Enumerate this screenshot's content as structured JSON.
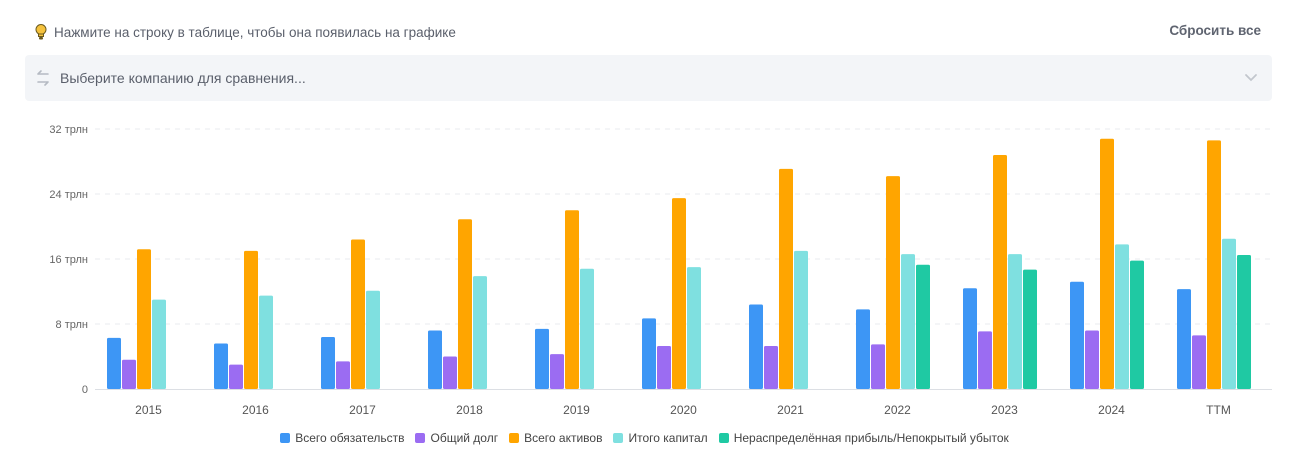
{
  "header": {
    "hint_text": "Нажмите на строку в таблице, чтобы она появилась на графике",
    "reset_label": "Сбросить все"
  },
  "compare": {
    "placeholder": "Выберите компанию для сравнения..."
  },
  "colors": {
    "liabilities": "#3d96f5",
    "debt": "#9b6cf2",
    "assets": "#ffa500",
    "equity": "#7fe0e0",
    "retained": "#1fc9a3",
    "hint_bulb": "#f5c23d"
  },
  "icons": {
    "hint": "lightbulb-icon",
    "compare": "swap-arrows-icon",
    "dropdown": "chevron-down-icon"
  },
  "chart_data": {
    "type": "bar",
    "categories": [
      "2015",
      "2016",
      "2017",
      "2018",
      "2019",
      "2020",
      "2021",
      "2022",
      "2023",
      "2024",
      "TTM"
    ],
    "ylim": [
      0,
      32
    ],
    "y_ticks": [
      0,
      8,
      16,
      24,
      32
    ],
    "y_tick_labels": [
      "0",
      "8 трлн",
      "16 трлн",
      "24 трлн",
      "32 трлн"
    ],
    "grid": true,
    "legend_position": "bottom",
    "series": [
      {
        "name": "Всего обязательств",
        "color": "#3d96f5",
        "values": [
          6.3,
          5.6,
          6.4,
          7.2,
          7.4,
          8.7,
          10.4,
          9.8,
          12.4,
          13.2,
          12.3
        ]
      },
      {
        "name": "Общий долг",
        "color": "#9b6cf2",
        "values": [
          3.6,
          3.0,
          3.4,
          4.0,
          4.3,
          5.3,
          5.3,
          5.5,
          7.1,
          7.2,
          6.6
        ]
      },
      {
        "name": "Всего активов",
        "color": "#ffa500",
        "values": [
          17.2,
          17.0,
          18.4,
          20.9,
          22.0,
          23.5,
          27.1,
          26.2,
          28.8,
          30.8,
          30.6
        ]
      },
      {
        "name": "Итого капитал",
        "color": "#7fe0e0",
        "values": [
          11.0,
          11.5,
          12.1,
          13.9,
          14.8,
          15.0,
          17.0,
          16.6,
          16.6,
          17.8,
          18.5
        ]
      },
      {
        "name": "Нераспределённая прибыль/Непокрытый убыток",
        "color": "#1fc9a3",
        "values": [
          null,
          null,
          null,
          null,
          null,
          null,
          null,
          15.3,
          14.7,
          15.8,
          16.5
        ]
      }
    ]
  }
}
